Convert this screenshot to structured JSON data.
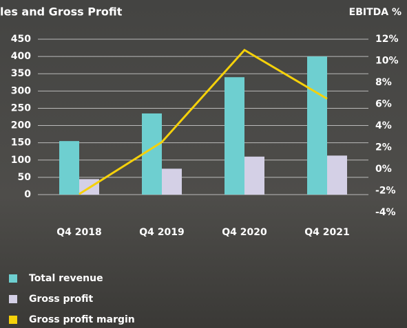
{
  "chart_data": {
    "type": "bar-line",
    "title": "les and Gross Profit",
    "y2_label": "EBITDA %",
    "categories": [
      "Q4 2018",
      "Q4 2019",
      "Q4 2020",
      "Q4 2021"
    ],
    "series": [
      {
        "name": "Total revenue",
        "color": "#6ecfd0",
        "type": "bar",
        "values": [
          155,
          235,
          340,
          400
        ]
      },
      {
        "name": "Gross profit",
        "color": "#d4d0e6",
        "type": "bar",
        "values": [
          45,
          75,
          110,
          113
        ]
      },
      {
        "name": "Gross profit margin",
        "color": "#f5d10a",
        "type": "line",
        "axis": "y2",
        "values": [
          -2.3,
          2.5,
          11,
          6.5
        ]
      }
    ],
    "ylim": [
      0,
      450
    ],
    "yticks": [
      0,
      50,
      100,
      150,
      200,
      250,
      300,
      350,
      400,
      450
    ],
    "y2lim": [
      -4,
      12
    ],
    "y2ticks": [
      {
        "value": -4,
        "label": "-4%"
      },
      {
        "value": -2,
        "label": "-2%"
      },
      {
        "value": 0,
        "label": "0%"
      },
      {
        "value": 2,
        "label": "2%"
      },
      {
        "value": 4,
        "label": "4%"
      },
      {
        "value": 6,
        "label": "6%"
      },
      {
        "value": 8,
        "label": "8%"
      },
      {
        "value": 10,
        "label": "10%"
      },
      {
        "value": 12,
        "label": "12%"
      }
    ],
    "grid": true
  }
}
